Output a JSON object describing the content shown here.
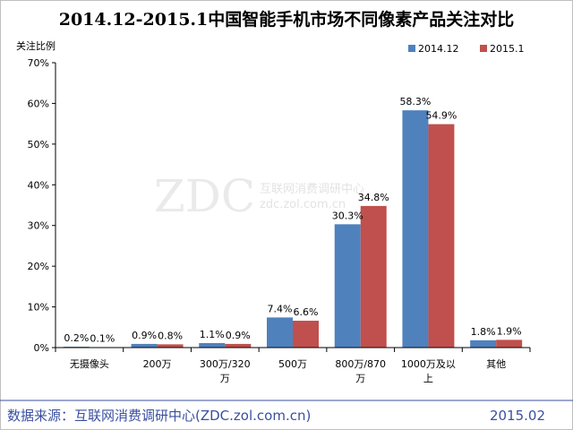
{
  "chart_data": {
    "type": "bar",
    "title": "2014.12-2015.1中国智能手机市场不同像素产品关注对比",
    "ylabel": "关注比例",
    "ylim": [
      0,
      70
    ],
    "yticks": [
      "0%",
      "10%",
      "20%",
      "30%",
      "40%",
      "50%",
      "60%",
      "70%"
    ],
    "categories": [
      [
        "无摄像头"
      ],
      [
        "200万"
      ],
      [
        "300万/320",
        "万"
      ],
      [
        "500万"
      ],
      [
        "800万/870",
        "万"
      ],
      [
        "1000万及以",
        "上"
      ],
      [
        "其他"
      ]
    ],
    "series": [
      {
        "name": "2014.12",
        "color": "#4f81bd",
        "values": [
          0.2,
          0.9,
          1.1,
          7.4,
          30.3,
          58.3,
          1.8
        ],
        "labels": [
          "0.2%",
          "0.9%",
          "1.1%",
          "7.4%",
          "30.3%",
          "58.3%",
          "1.8%"
        ]
      },
      {
        "name": "2015.1",
        "color": "#c0504d",
        "values": [
          0.1,
          0.8,
          0.9,
          6.6,
          34.8,
          54.9,
          1.9
        ],
        "labels": [
          "0.1%",
          "0.8%",
          "0.9%",
          "6.6%",
          "34.8%",
          "54.9%",
          "1.9%"
        ]
      }
    ],
    "legend": "top-right",
    "grid": false
  },
  "watermark": {
    "logo": "ZDC",
    "line1": "互联网消费调研中心",
    "line2": "zdc.zol.com.cn"
  },
  "footer": {
    "source": "数据来源：互联网消费调研中心(ZDC.zol.com.cn)",
    "date": "2015.02"
  }
}
